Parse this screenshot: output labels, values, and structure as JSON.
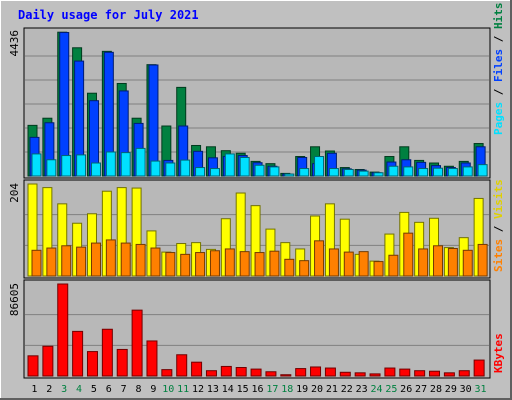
{
  "chart_data": {
    "type": "bar",
    "title": "Daily usage for July 2021",
    "categories": [
      "1",
      "2",
      "3",
      "4",
      "5",
      "6",
      "7",
      "8",
      "9",
      "10",
      "11",
      "12",
      "13",
      "14",
      "15",
      "16",
      "17",
      "18",
      "19",
      "20",
      "21",
      "22",
      "23",
      "24",
      "25",
      "26",
      "27",
      "28",
      "29",
      "30",
      "31"
    ],
    "weekend_days": [
      "3",
      "4",
      "10",
      "11",
      "17",
      "18",
      "24",
      "25",
      "31"
    ],
    "panels": [
      {
        "name": "hits-files-pages",
        "ymax_label": "4436",
        "ylim": [
          0,
          4436
        ],
        "right_labels": [
          "Pages",
          "Files",
          "Hits"
        ],
        "series": [
          {
            "name": "Hits",
            "color": "#008040",
            "values": [
              1560,
              1780,
              4430,
              3950,
              2550,
              3840,
              2850,
              1780,
              3430,
              1540,
              2730,
              940,
              900,
              780,
              700,
              450,
              380,
              80,
              600,
              900,
              770,
              260,
              200,
              120,
              600,
              900,
              480,
              400,
              300,
              450,
              1000
            ]
          },
          {
            "name": "Files",
            "color": "#0040ff",
            "values": [
              1190,
              1640,
              4420,
              3540,
              2320,
              3810,
              2620,
              1620,
              3420,
              480,
              1540,
              760,
              560,
              600,
              630,
              410,
              300,
              60,
              570,
              380,
              700,
              220,
              180,
              100,
              430,
              500,
              420,
              320,
              260,
              400,
              900
            ]
          },
          {
            "name": "Pages",
            "color": "#00e0ff",
            "values": [
              680,
              500,
              630,
              650,
              400,
              740,
              720,
              850,
              460,
              400,
              490,
              260,
              230,
              680,
              570,
              330,
              280,
              60,
              230,
              600,
              230,
              200,
              150,
              100,
              300,
              280,
              230,
              240,
              230,
              280,
              350
            ]
          }
        ]
      },
      {
        "name": "visits-sites",
        "ymax_label": "204",
        "ylim": [
          0,
          204
        ],
        "right_labels": [
          "Sites",
          "Visits"
        ],
        "series": [
          {
            "name": "Visits",
            "color": "#ffff00",
            "values": [
              204,
              196,
              160,
              117,
              138,
              188,
              196,
              195,
              100,
              53,
              72,
              74,
              59,
              127,
              184,
              156,
              104,
              74,
              60,
              133,
              160,
              126,
              48,
              33,
              93,
              141,
              119,
              128,
              63,
              85,
              172
            ]
          },
          {
            "name": "Sites",
            "color": "#ff8000",
            "values": [
              57,
              62,
              67,
              64,
              73,
              80,
              73,
              70,
              62,
              52,
              48,
              52,
              56,
              60,
              54,
              52,
              55,
              37,
              34,
              78,
              60,
              53,
              54,
              32,
              46,
              95,
              60,
              67,
              61,
              57,
              70
            ]
          }
        ]
      },
      {
        "name": "kbytes",
        "ymax_label": "86605",
        "ylim": [
          0,
          86605
        ],
        "right_labels": [
          "KBytes"
        ],
        "series": [
          {
            "name": "KBytes",
            "color": "#ff0000",
            "values": [
              19000,
              28000,
              86605,
              42000,
              23000,
              44000,
              25000,
              62000,
              33000,
              6000,
              20000,
              13000,
              5000,
              9000,
              8000,
              6500,
              4000,
              1200,
              7000,
              8500,
              7500,
              3500,
              3000,
              2000,
              7500,
              6500,
              5000,
              4500,
              3000,
              5000,
              15000
            ]
          }
        ]
      }
    ]
  },
  "colors": {
    "background": "#c0c0c0",
    "plot_bg": "#b8b8b8",
    "title": "#0000ff",
    "weekend_label": "#008040",
    "weekday_label": "#000000",
    "grid": "#808080"
  }
}
